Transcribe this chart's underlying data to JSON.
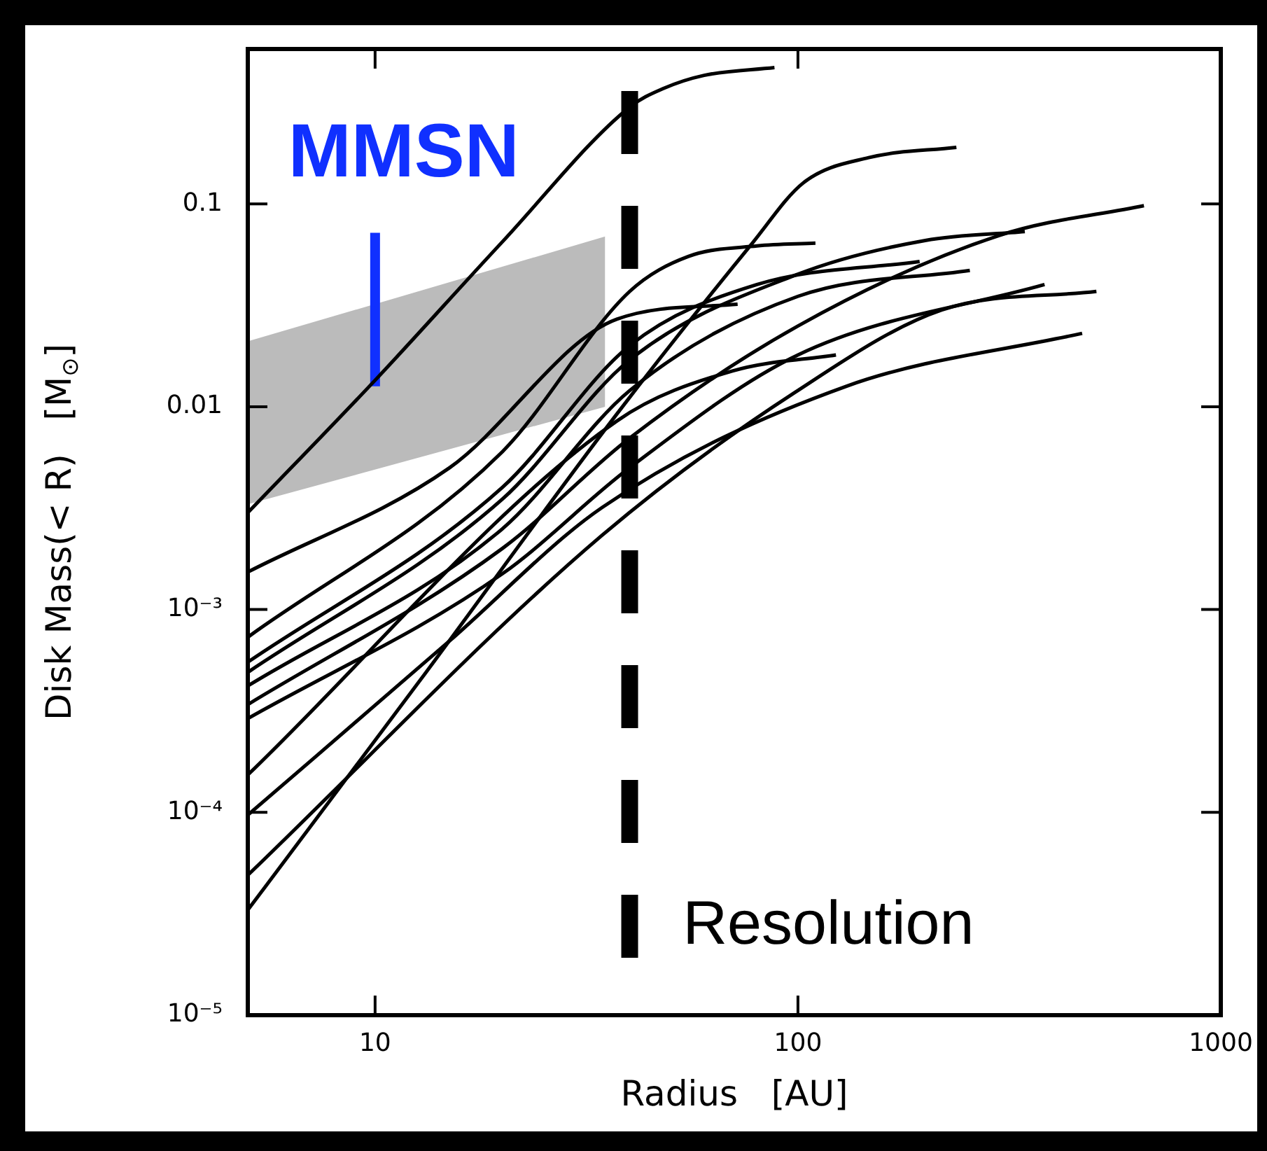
{
  "chart_data": {
    "type": "line",
    "xlabel": "Radius   [AU]",
    "ylabel": "Disk Mass(< R)   [M$_{⊙}$]",
    "log": "xy",
    "xlim": [
      5,
      1000
    ],
    "ylim": [
      1e-05,
      0.58
    ],
    "xticks": [
      10,
      100,
      1000
    ],
    "yticks": [
      {
        "value": 1e-05,
        "label": "10⁻⁵"
      },
      {
        "value": 0.0001,
        "label": "10⁻⁴"
      },
      {
        "value": 0.001,
        "label": "10⁻³"
      },
      0.01,
      0.1
    ],
    "grid": false,
    "legend": false,
    "marker": "none",
    "ref_lines": [
      {
        "axis": "x",
        "value": 40,
        "label": "Resolution",
        "color": "#000000",
        "line_style": "dashed"
      }
    ],
    "series": [
      {
        "type": "area",
        "color": "#bbbbbb",
        "x": [
          5,
          35
        ],
        "values": [
          null,
          null
        ],
        "lower": [
          0.0033,
          0.01
        ],
        "upper": [
          0.021,
          0.069
        ]
      },
      {
        "color": "#000000",
        "x": [
          5,
          10,
          20,
          40,
          48,
          60,
          88
        ],
        "values": [
          0.003,
          0.0135,
          0.065,
          0.3,
          0.37,
          0.43,
          0.47
        ]
      },
      {
        "color": "#000000",
        "x": [
          5,
          12.8,
          37,
          78,
          103,
          147,
          237
        ],
        "values": [
          3.3e-05,
          0.00045,
          0.009,
          0.064,
          0.127,
          0.169,
          0.19
        ]
      },
      {
        "color": "#000000",
        "x": [
          5,
          34.4,
          98,
          219,
          508
        ],
        "values": [
          4.9e-05,
          0.00232,
          0.0117,
          0.03,
          0.037
        ]
      },
      {
        "color": "#000000",
        "x": [
          5,
          15,
          34.4,
          130,
          470
        ],
        "values": [
          9.7e-05,
          0.0007,
          0.00318,
          0.0126,
          0.023
        ]
      },
      {
        "color": "#000000",
        "x": [
          5,
          37.3,
          70,
          123
        ],
        "values": [
          0.000153,
          0.0085,
          0.015,
          0.018
        ]
      },
      {
        "color": "#000000",
        "x": [
          5,
          15,
          37.3,
          72
        ],
        "values": [
          0.00153,
          0.005,
          0.027,
          0.032
        ]
      },
      {
        "color": "#000000",
        "x": [
          5,
          20,
          40,
          55,
          80,
          110
        ],
        "values": [
          0.00073,
          0.006,
          0.037,
          0.055,
          0.062,
          0.064
        ]
      },
      {
        "color": "#000000",
        "x": [
          5,
          20,
          40,
          80,
          194
        ],
        "values": [
          0.00055,
          0.004,
          0.02,
          0.04,
          0.052
        ]
      },
      {
        "color": "#000000",
        "x": [
          5,
          20,
          40,
          100,
          200,
          344
        ],
        "values": [
          0.00049,
          0.0035,
          0.017,
          0.045,
          0.066,
          0.073
        ]
      },
      {
        "color": "#000000",
        "x": [
          5,
          20,
          40,
          100,
          255
        ],
        "values": [
          0.00042,
          0.0025,
          0.012,
          0.035,
          0.047
        ]
      },
      {
        "color": "#000000",
        "x": [
          5,
          20,
          40,
          100,
          300,
          658
        ],
        "values": [
          0.00034,
          0.002,
          0.007,
          0.025,
          0.07,
          0.098
        ]
      },
      {
        "color": "#000000",
        "x": [
          5,
          20,
          40,
          100,
          383
        ],
        "values": [
          0.00029,
          0.0015,
          0.005,
          0.018,
          0.04
        ]
      },
      {
        "color": "#1030ff",
        "x": [
          10,
          10
        ],
        "values": [
          0.0126,
          0.072
        ]
      }
    ],
    "annotations": [
      {
        "text": "MMSN",
        "x": 10,
        "y": 0.072
      }
    ]
  }
}
